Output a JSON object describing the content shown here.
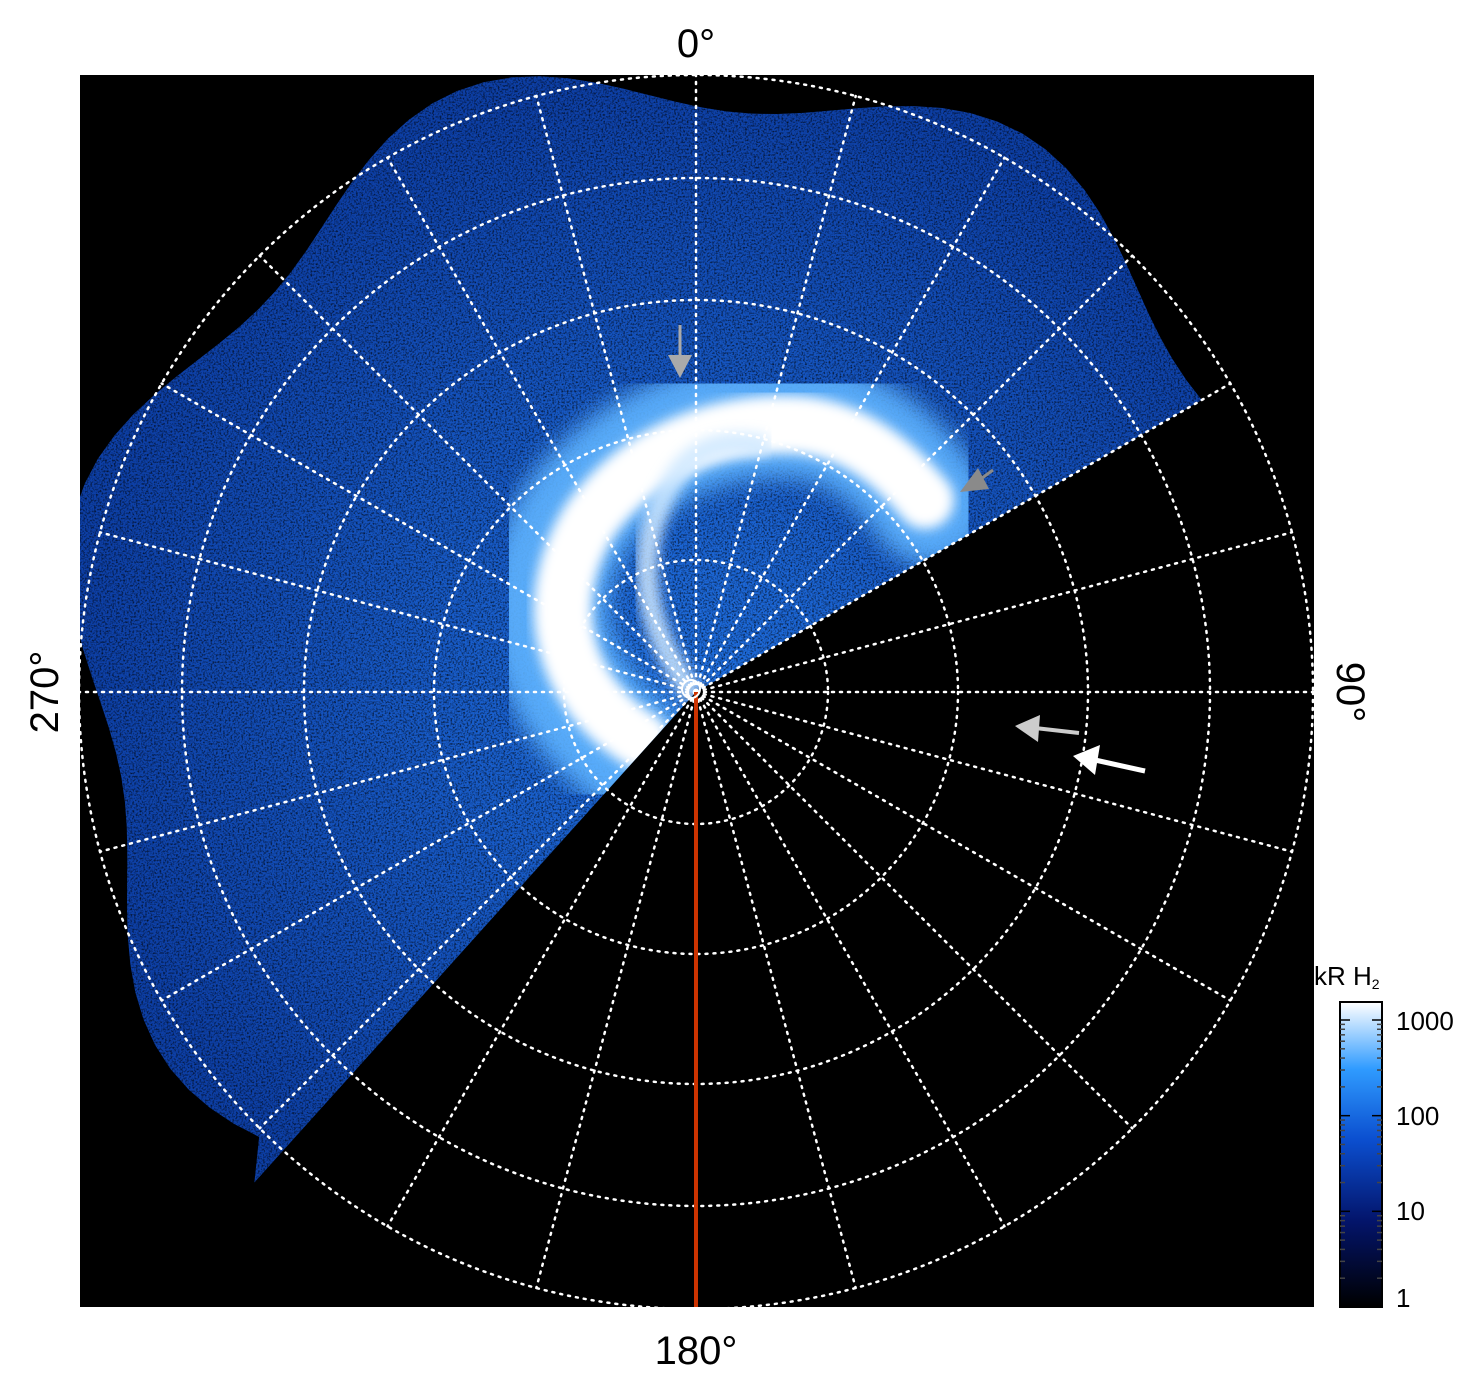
{
  "polar_labels": {
    "top": "0°",
    "bottom": "180°",
    "left": "270°",
    "right": "90°"
  },
  "colorbar": {
    "title_main": "kR H",
    "title_sub": "2",
    "ticks": [
      "1000",
      "100",
      "10",
      "1"
    ],
    "scale": "log"
  },
  "colors": {
    "background": "#000000",
    "grid": "#ffffff",
    "meridian_line": "#cc3300",
    "aurora_bright": "#ffffff",
    "aurora_mid": "#2f8fff",
    "aurora_dark": "#0a3a9a"
  },
  "icons": [
    "arrow-icon-gray-top",
    "arrow-icon-gray-upper-right",
    "arrow-icon-light-right",
    "arrow-icon-white-right"
  ]
}
